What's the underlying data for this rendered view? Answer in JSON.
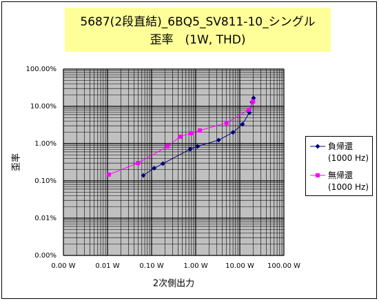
{
  "chart_data": {
    "type": "line",
    "title": "5687(2段直結)_6BQ5_SV811-10_シングル",
    "subtitle": "歪率　(1W, THD)",
    "x_label": "2次側出力",
    "y_label": "歪率",
    "log_x": true,
    "log_y": true,
    "grid": true,
    "legend": "right",
    "xlim": [
      0.001,
      100
    ],
    "xticks": [
      {
        "value": 0.001,
        "label": "0.00 W"
      },
      {
        "value": 0.01,
        "label": "0.01 W"
      },
      {
        "value": 0.1,
        "label": "0.10 W"
      },
      {
        "value": 1,
        "label": "1.00 W"
      },
      {
        "value": 10,
        "label": "10.00 W"
      },
      {
        "value": 100,
        "label": "100.00 W"
      }
    ],
    "ylim": [
      0.001,
      100
    ],
    "yticks": [
      {
        "value": 0.001,
        "label": "0.00%"
      },
      {
        "value": 0.01,
        "label": "0.01%"
      },
      {
        "value": 0.1,
        "label": "0.10%"
      },
      {
        "value": 1,
        "label": "1.00%"
      },
      {
        "value": 10,
        "label": "10.00%"
      },
      {
        "value": 100,
        "label": "100.00%"
      }
    ],
    "series": [
      {
        "name": "負帰還\n(1000 Hz)",
        "color": "#000080",
        "marker": "diamond",
        "x": [
          0.065,
          0.115,
          0.18,
          0.75,
          1.1,
          3.3,
          7.0,
          11.5,
          16.5,
          19,
          20.5
        ],
        "values": [
          0.14,
          0.22,
          0.29,
          0.71,
          0.84,
          1.24,
          2.0,
          3.3,
          6.8,
          12.9,
          16.7
        ]
      },
      {
        "name": "無帰還\n(1000 Hz)",
        "color": "#ff00ff",
        "marker": "square",
        "x": [
          0.0107,
          0.049,
          0.23,
          0.44,
          0.78,
          1.24,
          5.0,
          16,
          20
        ],
        "values": [
          0.147,
          0.3,
          0.84,
          1.53,
          1.9,
          2.25,
          3.6,
          8.1,
          13.5
        ]
      }
    ]
  }
}
